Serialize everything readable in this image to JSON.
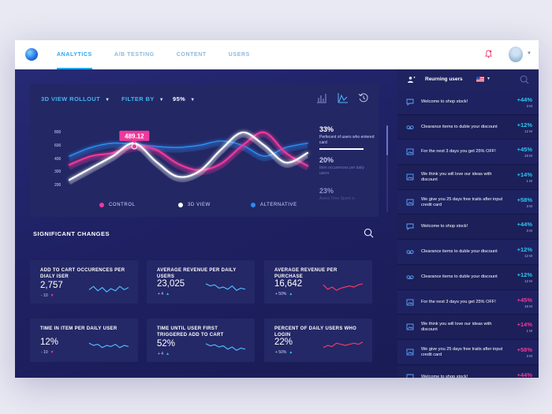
{
  "nav": {
    "tabs": [
      {
        "label": "ANALYTICS",
        "active": true
      },
      {
        "label": "A/B TESTING",
        "active": false
      },
      {
        "label": "CONTENT",
        "active": false
      },
      {
        "label": "USERS",
        "active": false
      }
    ]
  },
  "chart_panel": {
    "view_dropdown": "3D VIEW ROLLOUT",
    "filter_dropdown": "FILTER BY",
    "percent_dropdown": "95%",
    "view_icons": [
      "bar-chart-icon",
      "area-chart-icon",
      "history-icon"
    ],
    "tooltip": "489.12",
    "legend": [
      {
        "label": "CONTROL",
        "color": "#f0399b"
      },
      {
        "label": "3D VIEW",
        "color": "#ffffff"
      },
      {
        "label": "ALTERNATIVE",
        "color": "#2c8cf0"
      }
    ],
    "stats": [
      {
        "percent": "33%",
        "description": "Perfecent of users who entered card"
      },
      {
        "percent": "20%",
        "description": "Item occurences per daily users"
      },
      {
        "percent": "23%",
        "description": "Avera Time Spent in"
      }
    ]
  },
  "chart_data": {
    "type": "line",
    "y_ticks": [
      100,
      200,
      300,
      400,
      600,
      800
    ],
    "series": [
      {
        "name": "CONTROL",
        "color": "#f0399b",
        "values": [
          220,
          300,
          330,
          390,
          360,
          230,
          170,
          230,
          400,
          520,
          330,
          210
        ]
      },
      {
        "name": "3D VIEW",
        "color": "#ffffff",
        "values": [
          80,
          190,
          300,
          420,
          250,
          110,
          160,
          360,
          520,
          400,
          240,
          330
        ]
      },
      {
        "name": "ALTERNATIVE",
        "color": "#2c8cf0",
        "values": [
          300,
          380,
          420,
          410,
          390,
          380,
          400,
          440,
          400,
          300,
          380,
          420
        ]
      }
    ],
    "annotations": [
      {
        "text": "489.12"
      }
    ]
  },
  "significant": {
    "title": "SIGNIFICANT CHANGES",
    "metrics": [
      {
        "title": "ADD TO CART OCCURENCES PER DIALY ISER",
        "value": "2,757",
        "change": "- 10",
        "direction": "down",
        "color": "#f0399b",
        "spark_color": "#4fb8ff",
        "spark": [
          0.4,
          0.7,
          0.3,
          0.6,
          0.2,
          0.5,
          0.3,
          0.7,
          0.4,
          0.6
        ]
      },
      {
        "title": "AVERAGE REVENUE PER DAILY USERS",
        "value": "23,025",
        "change": "+ 4",
        "direction": "up",
        "color": "#2cc5f0",
        "spark_color": "#4fb8ff",
        "spark": [
          0.8,
          0.6,
          0.7,
          0.4,
          0.5,
          0.3,
          0.6,
          0.2,
          0.4,
          0.3
        ]
      },
      {
        "title": "AVERAGE REVENUE PER PURCHASE",
        "value": "16,642",
        "change": "+ 50%",
        "direction": "up",
        "color": "#2cc5f0",
        "spark_color": "#f0396b",
        "spark": [
          0.7,
          0.3,
          0.5,
          0.2,
          0.4,
          0.5,
          0.6,
          0.5,
          0.7,
          0.8
        ]
      },
      {
        "title": "TIME IN ITEM PER DAILY USER",
        "value": "12%",
        "change": "- 10",
        "direction": "down",
        "color": "#f0399b",
        "spark_color": "#4fb8ff",
        "spark": [
          0.7,
          0.5,
          0.6,
          0.3,
          0.5,
          0.4,
          0.6,
          0.3,
          0.5,
          0.4
        ]
      },
      {
        "title": "TIME UNTIL USER FIRST TRIGGERED ADD TO CART",
        "value": "52%",
        "change": "+ 4",
        "direction": "up",
        "color": "#2cc5f0",
        "spark_color": "#4fb8ff",
        "spark": [
          0.8,
          0.6,
          0.7,
          0.5,
          0.6,
          0.3,
          0.5,
          0.2,
          0.4,
          0.3
        ]
      },
      {
        "title": "PERCENT OF DAILY USERS WHO LOGIN",
        "value": "22%",
        "change": "+ 50%",
        "direction": "up",
        "color": "#2cc5f0",
        "spark_color": "#f0396b",
        "spark": [
          0.3,
          0.5,
          0.4,
          0.7,
          0.6,
          0.5,
          0.6,
          0.7,
          0.6,
          0.8
        ]
      }
    ]
  },
  "sidebar": {
    "header": "Reurning users",
    "items": [
      {
        "icon": "chat-icon",
        "text": "Welcome to shop stock!",
        "value": "+44%",
        "unit": "3 M",
        "color": "#2cc5f0"
      },
      {
        "icon": "voicemail-icon",
        "text": "Clearance items to duble your discount",
        "value": "+12%",
        "unit": "12 M",
        "color": "#2cc5f0"
      },
      {
        "icon": "image-icon",
        "text": "For the next 3 days you get 25% OFF!",
        "value": "+45%",
        "unit": "18 M",
        "color": "#2cc5f0"
      },
      {
        "icon": "image-icon",
        "text": "We think you will love our ideas with discount",
        "value": "+14%",
        "unit": "1 M",
        "color": "#2cc5f0"
      },
      {
        "icon": "image-icon",
        "text": "We give you 25 days free traits after input credit card",
        "value": "+58%",
        "unit": "3 M",
        "color": "#2cc5f0"
      },
      {
        "icon": "chat-icon",
        "text": "Welcome to shop stock!",
        "value": "+44%",
        "unit": "3 M",
        "color": "#2cc5f0"
      },
      {
        "icon": "voicemail-icon",
        "text": "Clearance items to duble your discount",
        "value": "+12%",
        "unit": "12 M",
        "color": "#2cc5f0"
      },
      {
        "icon": "voicemail-icon",
        "text": "Clearance items to duble your discount",
        "value": "+12%",
        "unit": "12 M",
        "color": "#2cc5f0"
      },
      {
        "icon": "image-icon",
        "text": "For the next 3 days you get 25% OFF!",
        "value": "+45%",
        "unit": "18 M",
        "color": "#f0399b"
      },
      {
        "icon": "image-icon",
        "text": "We think you will love our ideas with discount",
        "value": "+14%",
        "unit": "1 M",
        "color": "#f0399b"
      },
      {
        "icon": "image-icon",
        "text": "We give you 25 days free traits after input credit card",
        "value": "+58%",
        "unit": "3 M",
        "color": "#f0399b"
      },
      {
        "icon": "chat-icon",
        "text": "Welcome to shop stock!",
        "value": "+44%",
        "unit": "",
        "color": "#f0399b"
      }
    ]
  }
}
